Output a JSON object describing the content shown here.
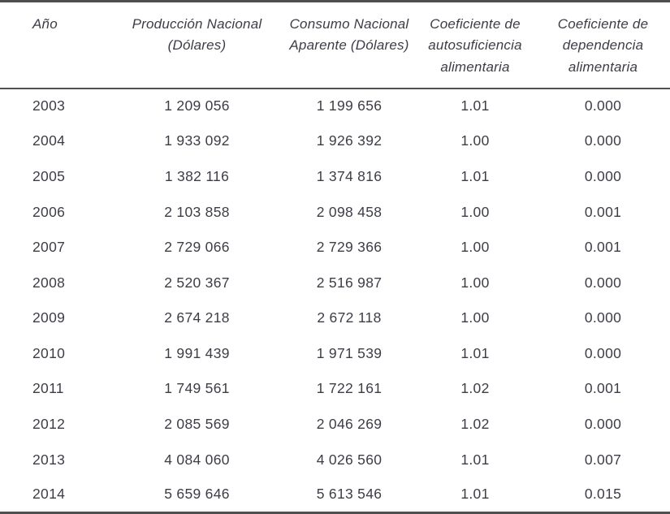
{
  "table": {
    "colors": {
      "text": "#3d3d47",
      "line": "#4f4f4f",
      "background": "#ffffff"
    },
    "columns": [
      {
        "key": "anio",
        "lines": [
          "Año"
        ]
      },
      {
        "key": "produccion_nacional",
        "lines": [
          "Producción Nacional",
          "(Dólares)"
        ]
      },
      {
        "key": "consumo_nacional",
        "lines": [
          "Consumo Nacional",
          "Aparente  (Dólares)"
        ]
      },
      {
        "key": "coef_autosuficiencia",
        "lines": [
          "Coeficiente de",
          "autosuficiencia",
          "alimentaria"
        ]
      },
      {
        "key": "coef_dependencia",
        "lines": [
          "Coeficiente de",
          "dependencia",
          "alimentaria"
        ]
      }
    ],
    "rows": [
      [
        "2003",
        "1 209 056",
        "1 199 656",
        "1.01",
        "0.000"
      ],
      [
        "2004",
        "1 933 092",
        "1 926 392",
        "1.00",
        "0.000"
      ],
      [
        "2005",
        "1 382 116",
        "1 374 816",
        "1.01",
        "0.000"
      ],
      [
        "2006",
        "2 103 858",
        "2 098 458",
        "1.00",
        "0.001"
      ],
      [
        "2007",
        "2 729 066",
        "2 729 366",
        "1.00",
        "0.001"
      ],
      [
        "2008",
        "2 520 367",
        "2 516 987",
        "1.00",
        "0.000"
      ],
      [
        "2009",
        "2 674 218",
        "2 672 118",
        "1.00",
        "0.000"
      ],
      [
        "2010",
        "1 991 439",
        "1 971 539",
        "1.01",
        "0.000"
      ],
      [
        "2011",
        "1 749 561",
        "1 722 161",
        "1.02",
        "0.001"
      ],
      [
        "2012",
        "2 085 569",
        "2 046 269",
        "1.02",
        "0.000"
      ],
      [
        "2013",
        "4 084 060",
        "4 026 560",
        "1.01",
        "0.007"
      ],
      [
        "2014",
        "5 659 646",
        "5 613 546",
        "1.01",
        "0.015"
      ]
    ],
    "cell_names": [
      "cell-year",
      "cell-produccion-nacional",
      "cell-consumo-nacional",
      "cell-coef-autosuficiencia",
      "cell-coef-dependencia"
    ]
  }
}
